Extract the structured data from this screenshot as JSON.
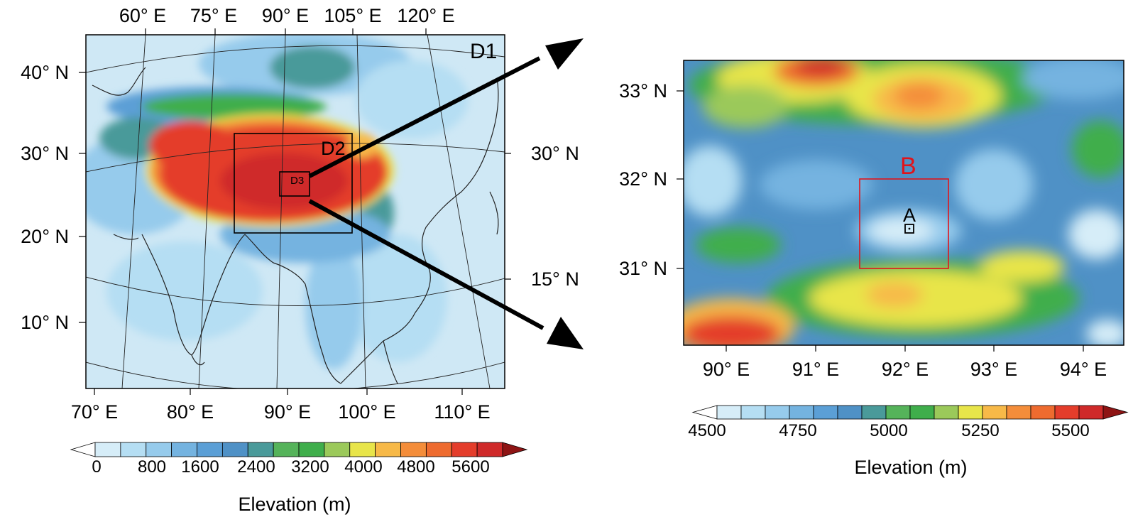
{
  "colors": {
    "elev_palette": [
      "#d6edf8",
      "#b5def3",
      "#96cbec",
      "#74b3e0",
      "#5b9fd6",
      "#4f91c6",
      "#4a9a9a",
      "#55b35a",
      "#3fae4b",
      "#9bc95a",
      "#e8e54a",
      "#f7b948",
      "#f48d3a",
      "#ee6b2f",
      "#e43d2b",
      "#cf2a2a",
      "#b21d1d",
      "#8e1414"
    ],
    "box_black": "#000000",
    "box_red": "#e0141b",
    "frame": "#000000"
  },
  "left_map": {
    "top_lon_labels": [
      "60° E",
      "75° E",
      "90° E",
      "105° E",
      "120° E"
    ],
    "left_lat_labels": [
      "40° N",
      "30° N",
      "20° N",
      "10° N"
    ],
    "right_lat_labels": [
      "30° N",
      "15° N"
    ],
    "bottom_lon_labels": [
      "70° E",
      "80° E",
      "90° E",
      "100° E",
      "110° E"
    ],
    "domain_labels": [
      "D1",
      "D2",
      "D3"
    ],
    "colorbar": {
      "tick_labels": [
        "0",
        "800",
        "1600",
        "2400",
        "3200",
        "4000",
        "4800",
        "5600"
      ],
      "title": "Elevation (m)"
    }
  },
  "right_map": {
    "left_lat_labels": [
      "33° N",
      "32° N",
      "31° N"
    ],
    "bottom_lon_labels": [
      "90° E",
      "91° E",
      "92° E",
      "93° E",
      "94° E"
    ],
    "box_labels": [
      "B",
      "A"
    ],
    "colorbar": {
      "tick_labels": [
        "4500",
        "4750",
        "5000",
        "5250",
        "5500"
      ],
      "title": "Elevation (m)"
    }
  }
}
